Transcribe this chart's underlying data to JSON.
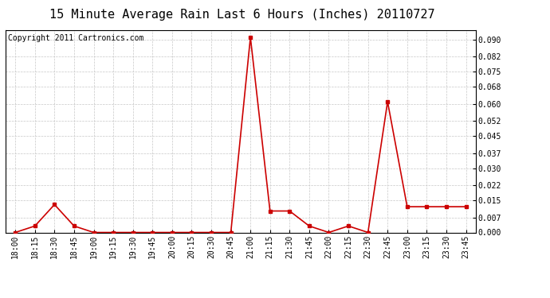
{
  "title": "15 Minute Average Rain Last 6 Hours (Inches) 20110727",
  "copyright": "Copyright 2011 Cartronics.com",
  "line_color": "#cc0000",
  "bg_color": "#ffffff",
  "grid_color": "#c8c8c8",
  "x_labels": [
    "18:00",
    "18:15",
    "18:30",
    "18:45",
    "19:00",
    "19:15",
    "19:30",
    "19:45",
    "20:00",
    "20:15",
    "20:30",
    "20:45",
    "21:00",
    "21:15",
    "21:30",
    "21:45",
    "22:00",
    "22:15",
    "22:30",
    "22:45",
    "23:00",
    "23:15",
    "23:30",
    "23:45"
  ],
  "y_values": [
    0.0,
    0.003,
    0.013,
    0.003,
    0.0,
    0.0,
    0.0,
    0.0,
    0.0,
    0.0,
    0.0,
    0.0,
    0.091,
    0.01,
    0.01,
    0.003,
    0.0,
    0.003,
    0.0,
    0.061,
    0.012,
    0.012,
    0.012,
    0.012
  ],
  "yticks": [
    0.0,
    0.007,
    0.015,
    0.022,
    0.03,
    0.037,
    0.045,
    0.052,
    0.06,
    0.068,
    0.075,
    0.082,
    0.09
  ],
  "ylim": [
    0.0,
    0.0945
  ],
  "title_fontsize": 11,
  "copyright_fontsize": 7,
  "tick_fontsize": 7,
  "marker_size": 3,
  "linewidth": 1.2
}
